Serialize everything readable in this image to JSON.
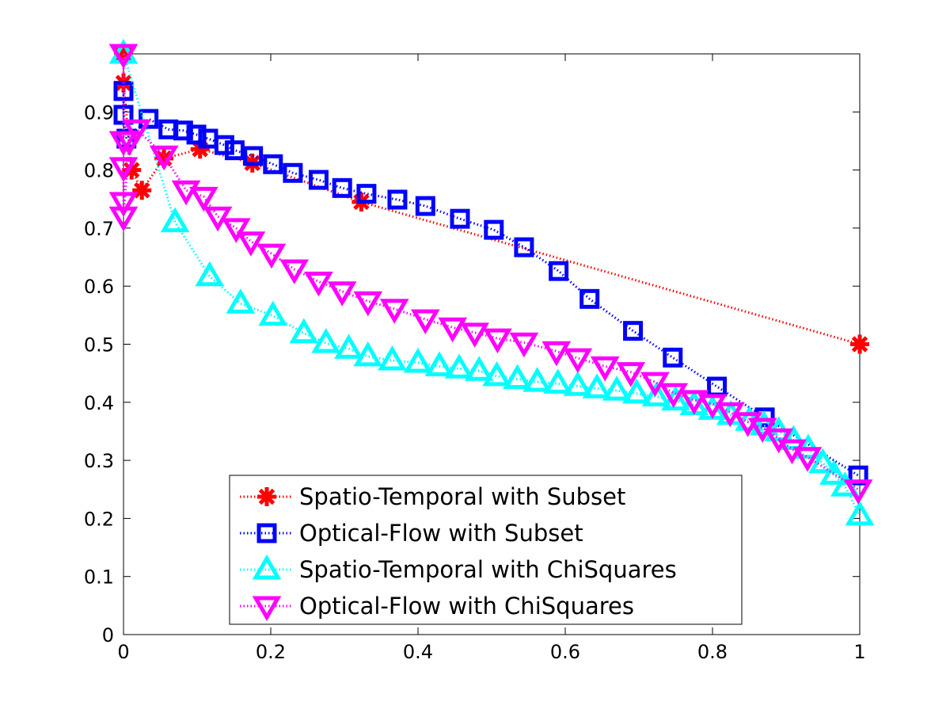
{
  "chart_data": {
    "type": "line",
    "title": "",
    "xlabel": "",
    "ylabel": "",
    "xlim": [
      0,
      1
    ],
    "ylim": [
      0,
      1
    ],
    "xticks": [
      "0",
      "0.2",
      "0.4",
      "0.6",
      "0.8",
      "1"
    ],
    "yticks": [
      "0",
      "0.1",
      "0.2",
      "0.3",
      "0.4",
      "0.5",
      "0.6",
      "0.7",
      "0.8",
      "0.9"
    ],
    "grid": false,
    "legend_position": "bottom-center",
    "series": [
      {
        "name": "Spatio-Temporal with Subset",
        "color": "#ff0000",
        "marker": "asterisk",
        "x": [
          0,
          0,
          0.011,
          0.025,
          0.055,
          0.104,
          0.175,
          0.323,
          1.0
        ],
        "y": [
          1.0,
          0.95,
          0.8,
          0.765,
          0.82,
          0.836,
          0.812,
          0.745,
          0.5
        ]
      },
      {
        "name": "Optical-Flow with Subset",
        "color": "#0000ff",
        "marker": "square",
        "x": [
          0,
          0,
          0.004,
          0.034,
          0.061,
          0.081,
          0.099,
          0.115,
          0.137,
          0.151,
          0.176,
          0.203,
          0.23,
          0.265,
          0.297,
          0.33,
          0.372,
          0.41,
          0.457,
          0.503,
          0.544,
          0.591,
          0.633,
          0.692,
          0.746,
          0.806,
          0.871,
          0.998
        ],
        "y": [
          0.936,
          0.895,
          0.854,
          0.888,
          0.87,
          0.868,
          0.861,
          0.854,
          0.843,
          0.834,
          0.824,
          0.81,
          0.795,
          0.783,
          0.769,
          0.759,
          0.749,
          0.738,
          0.716,
          0.697,
          0.667,
          0.626,
          0.578,
          0.523,
          0.477,
          0.427,
          0.374,
          0.274
        ]
      },
      {
        "name": "Spatio-Temporal with ChiSquares",
        "color": "#00ffff",
        "marker": "triangle-up",
        "x": [
          0,
          0.07,
          0.117,
          0.159,
          0.203,
          0.245,
          0.275,
          0.306,
          0.332,
          0.365,
          0.4,
          0.429,
          0.456,
          0.483,
          0.507,
          0.535,
          0.562,
          0.59,
          0.617,
          0.643,
          0.67,
          0.697,
          0.724,
          0.75,
          0.775,
          0.8,
          0.825,
          0.85,
          0.87,
          0.89,
          0.91,
          0.93,
          0.95,
          0.965,
          0.98,
          1.0
        ],
        "y": [
          1.0,
          0.71,
          0.617,
          0.57,
          0.549,
          0.519,
          0.502,
          0.492,
          0.479,
          0.472,
          0.468,
          0.462,
          0.458,
          0.454,
          0.445,
          0.44,
          0.435,
          0.432,
          0.428,
          0.424,
          0.42,
          0.415,
          0.41,
          0.403,
          0.395,
          0.387,
          0.378,
          0.368,
          0.36,
          0.35,
          0.335,
          0.32,
          0.295,
          0.275,
          0.255,
          0.205
        ]
      },
      {
        "name": "Optical-Flow with ChiSquares",
        "color": "#ff00ff",
        "marker": "triangle-down",
        "x": [
          0,
          0,
          0,
          0,
          0,
          0.008,
          0.018,
          0.055,
          0.085,
          0.109,
          0.128,
          0.153,
          0.173,
          0.201,
          0.232,
          0.265,
          0.297,
          0.332,
          0.368,
          0.41,
          0.447,
          0.477,
          0.508,
          0.544,
          0.588,
          0.617,
          0.654,
          0.689,
          0.722,
          0.747,
          0.775,
          0.8,
          0.824,
          0.848,
          0.868,
          0.89,
          0.908,
          0.929,
          0.998
        ],
        "y": [
          1.0,
          0.85,
          0.805,
          0.745,
          0.72,
          0.85,
          0.87,
          0.825,
          0.765,
          0.754,
          0.72,
          0.7,
          0.677,
          0.656,
          0.629,
          0.608,
          0.591,
          0.574,
          0.561,
          0.543,
          0.529,
          0.52,
          0.51,
          0.503,
          0.488,
          0.476,
          0.462,
          0.452,
          0.435,
          0.416,
          0.404,
          0.397,
          0.383,
          0.366,
          0.356,
          0.338,
          0.319,
          0.306,
          0.25
        ]
      }
    ]
  }
}
